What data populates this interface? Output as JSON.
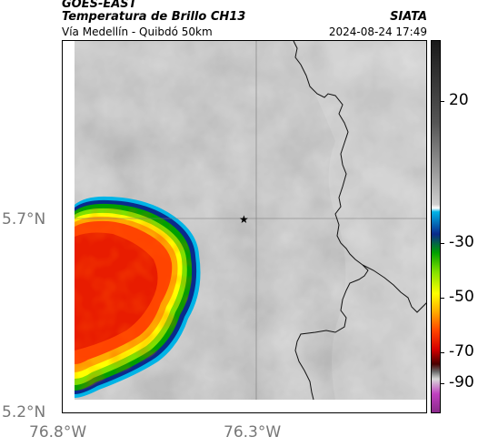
{
  "header": {
    "satellite": "GOES-EAST",
    "product": "Temperatura de Brillo CH13",
    "agency": "SIATA",
    "region": "Vía Medellín - Quibdó 50km",
    "datetime": "2024-08-24 17:49"
  },
  "axes": {
    "lat_labels": [
      "5.7°N",
      "5.2°N"
    ],
    "lon_labels": [
      "76.8°W",
      "76.3°W"
    ]
  },
  "colorbar": {
    "tick_labels": [
      "20",
      "-30",
      "-50",
      "-70",
      "-90"
    ],
    "colors": [
      "#1a1a1a",
      "#555555",
      "#9a9a9a",
      "#cfcfcf",
      "#ffffff",
      "#00b4e6",
      "#0a2a8c",
      "#00a000",
      "#7fe000",
      "#ffff00",
      "#ffaa00",
      "#ff4400",
      "#d40000",
      "#4a0000",
      "#6a6a6a",
      "#d9d9d9",
      "#c040c0",
      "#8a2a8a"
    ]
  },
  "map": {
    "marker": "star-icon"
  }
}
